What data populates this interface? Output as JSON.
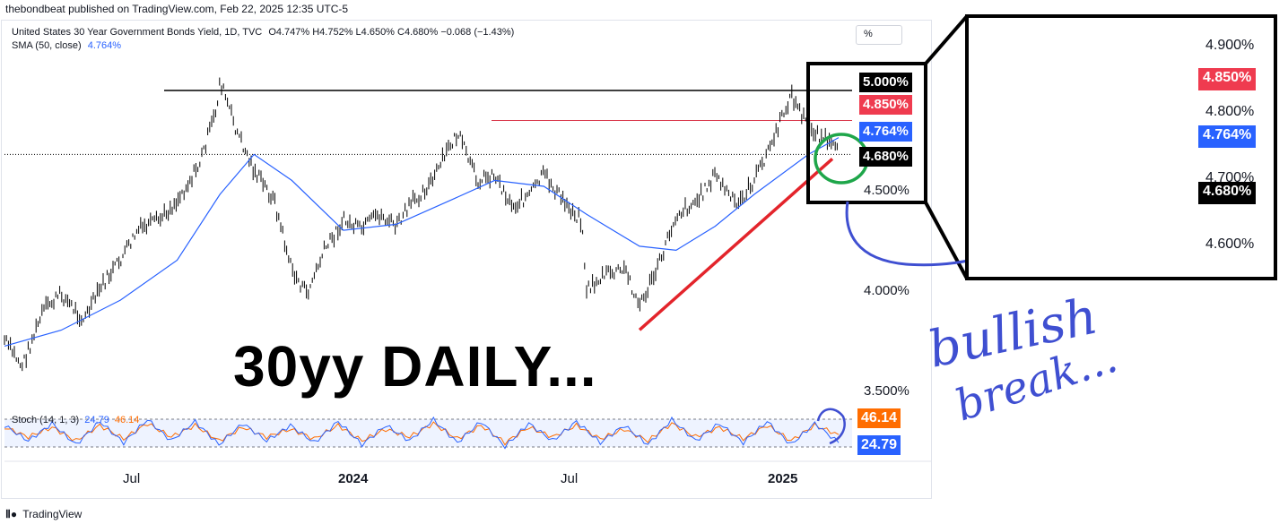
{
  "header": {
    "publisher": "thebondbeat published on TradingView.com, Feb 22, 2025 12:35 UTC-5"
  },
  "legend": {
    "symbol_line": "United States 30 Year Government Bonds Yield, 1D, TVC",
    "ohlc": "O4.747% H4.752% L4.650% C4.680% −0.068 (−1.43%)",
    "sma_label": "SMA (50, close)",
    "sma_value": "4.764%"
  },
  "toolbar": {
    "scale_button": "%"
  },
  "stoch": {
    "label": "Stoch (14, 1, 3)",
    "k_value": "24.79",
    "d_value": "46.14",
    "k_color": "#2962ff",
    "d_color": "#ff6d00"
  },
  "annotation": {
    "title": "30yy DAILY...",
    "handwriting": [
      "bullish",
      "break..."
    ],
    "ink_color": "#3f4fd1"
  },
  "footer": {
    "brand": "TradingView"
  },
  "colors": {
    "candle": "#000000",
    "sma": "#2962ff",
    "trendline": "#e3242b",
    "resistance_5": "#000000",
    "resistance_485": "#d9364a",
    "support": "#1e9e76",
    "circle": "#1ea64a",
    "tag_black": "#000000",
    "tag_red": "#ef3b4f",
    "tag_blue": "#2962ff"
  },
  "chart_data": {
    "type": "line",
    "title": "United States 30 Year Government Bonds Yield, 1D, TVC",
    "ylabel": "",
    "ylim": [
      3.35,
      5.25
    ],
    "x_tick_labels": [
      "Jul",
      "2024",
      "Jul",
      "2025"
    ],
    "y_tick_labels": [
      "5.000%",
      "4.500%",
      "4.000%",
      "3.500%"
    ],
    "price_tags": [
      "5.000%",
      "4.850%",
      "4.764%",
      "4.680%"
    ],
    "grid": false,
    "series": [
      {
        "name": "United States 30 Year Government Bonds Yield",
        "x": [
          "2023-05-01",
          "2023-05-15",
          "2023-06-01",
          "2023-06-15",
          "2023-07-03",
          "2023-07-17",
          "2023-08-01",
          "2023-08-15",
          "2023-09-01",
          "2023-09-15",
          "2023-10-02",
          "2023-10-16",
          "2023-10-19",
          "2023-11-01",
          "2023-11-15",
          "2023-12-01",
          "2023-12-15",
          "2023-12-27",
          "2024-01-10",
          "2024-01-25",
          "2024-02-08",
          "2024-02-22",
          "2024-03-07",
          "2024-03-21",
          "2024-04-05",
          "2024-04-19",
          "2024-04-25",
          "2024-05-10",
          "2024-05-24",
          "2024-06-07",
          "2024-06-21",
          "2024-07-02",
          "2024-07-17",
          "2024-08-01",
          "2024-08-05",
          "2024-08-20",
          "2024-09-05",
          "2024-09-16",
          "2024-10-01",
          "2024-10-15",
          "2024-11-01",
          "2024-11-15",
          "2024-12-02",
          "2024-12-16",
          "2025-01-02",
          "2025-01-14",
          "2025-01-28",
          "2025-02-10",
          "2025-02-21"
        ],
        "values": [
          3.75,
          3.62,
          3.9,
          3.98,
          3.85,
          4.02,
          4.15,
          4.3,
          4.35,
          4.45,
          4.62,
          4.9,
          5.05,
          4.8,
          4.6,
          4.45,
          4.1,
          3.98,
          4.2,
          4.35,
          4.3,
          4.38,
          4.32,
          4.45,
          4.55,
          4.73,
          4.78,
          4.55,
          4.58,
          4.42,
          4.48,
          4.58,
          4.45,
          4.35,
          4.0,
          4.08,
          4.1,
          3.92,
          4.12,
          4.38,
          4.45,
          4.58,
          4.42,
          4.55,
          4.78,
          4.98,
          4.82,
          4.76,
          4.68
        ]
      },
      {
        "name": "SMA (50, close)",
        "x": [
          "2023-05-01",
          "2023-06-15",
          "2023-08-01",
          "2023-09-15",
          "2023-10-19",
          "2023-11-15",
          "2023-12-15",
          "2024-01-25",
          "2024-03-07",
          "2024-04-19",
          "2024-05-24",
          "2024-07-02",
          "2024-08-05",
          "2024-09-16",
          "2024-10-15",
          "2024-11-15",
          "2024-12-16",
          "2025-01-28",
          "2025-02-21"
        ],
        "values": [
          3.72,
          3.8,
          3.95,
          4.15,
          4.48,
          4.68,
          4.55,
          4.3,
          4.33,
          4.45,
          4.55,
          4.52,
          4.38,
          4.22,
          4.2,
          4.32,
          4.48,
          4.68,
          4.764
        ]
      },
      {
        "name": "Stoch %K",
        "values": [
          70,
          30,
          75,
          20,
          80,
          25,
          85,
          30,
          80,
          20,
          75,
          30,
          70,
          25,
          80,
          20,
          70,
          30,
          85,
          25,
          80,
          15,
          75,
          30,
          80,
          25,
          70,
          20,
          85,
          30,
          75,
          25,
          80,
          20,
          75,
          24.79
        ]
      },
      {
        "name": "Stoch %D",
        "values": [
          65,
          40,
          65,
          30,
          70,
          35,
          75,
          40,
          70,
          30,
          65,
          40,
          60,
          35,
          70,
          30,
          60,
          40,
          75,
          35,
          70,
          25,
          65,
          40,
          70,
          35,
          60,
          30,
          75,
          40,
          65,
          35,
          70,
          30,
          70,
          46.14
        ]
      }
    ],
    "lines": {
      "resistance": 5.0,
      "resistance_2": 4.85,
      "last_close": 4.68,
      "trendline_start": [
        "2024-09-16",
        3.9
      ],
      "trendline_end": [
        "2025-02-21",
        4.68
      ]
    },
    "inset": {
      "y_tick_labels": [
        "4.900%",
        "4.800%",
        "4.700%",
        "4.600%"
      ],
      "tags": [
        "4.850%",
        "4.764%",
        "4.680%"
      ]
    }
  }
}
